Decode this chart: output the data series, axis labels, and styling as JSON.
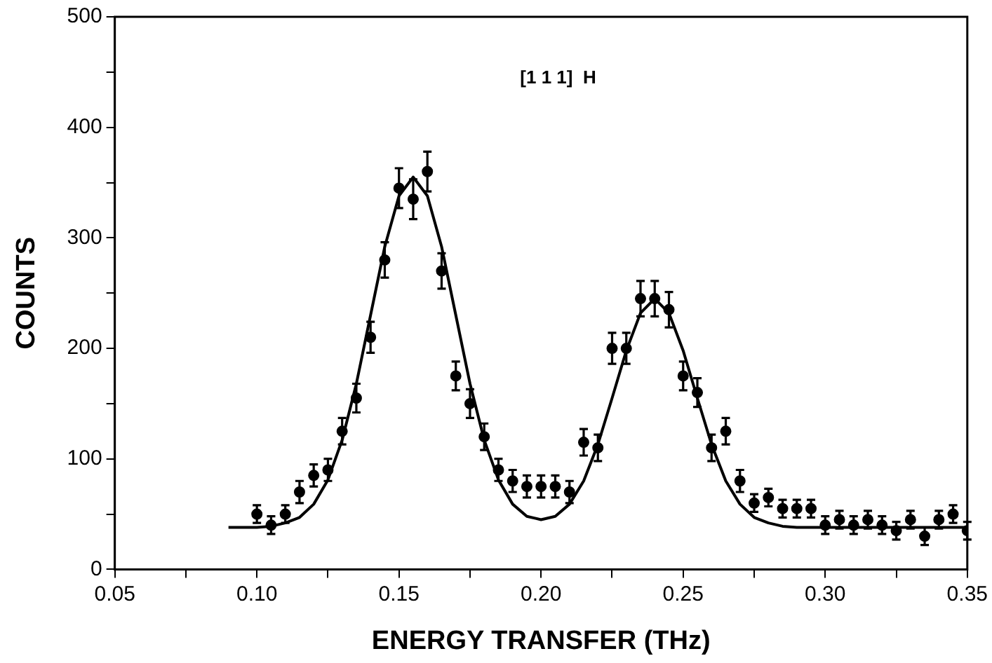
{
  "chart_data": {
    "type": "scatter",
    "xlabel": "ENERGY TRANSFER (THz)",
    "ylabel": "COUNTS",
    "annotations": [
      "[1 1 1]  H"
    ],
    "xlim": [
      0.05,
      0.35
    ],
    "ylim": [
      0,
      500
    ],
    "xticks": [
      0.05,
      {
        "value": 0.075,
        "label": null
      },
      "0.10",
      {
        "value": 0.125,
        "label": null
      },
      0.15,
      {
        "value": 0.175,
        "label": null
      },
      "0.20",
      {
        "value": 0.225,
        "label": null
      },
      0.25,
      {
        "value": 0.275,
        "label": null
      },
      "0.30",
      {
        "value": 0.325,
        "label": null
      },
      0.35
    ],
    "yticks": [
      0,
      {
        "value": 50,
        "label": null
      },
      100,
      {
        "value": 150,
        "label": null
      },
      200,
      {
        "value": 250,
        "label": null
      },
      300,
      {
        "value": 350,
        "label": null
      },
      400,
      {
        "value": 450,
        "label": null
      },
      500
    ],
    "grid": false,
    "legend": false,
    "marker": "circle",
    "series": [
      {
        "type": "scatter",
        "color": "#000000",
        "x": [
          0.1,
          0.105,
          0.11,
          0.115,
          0.12,
          0.125,
          0.13,
          0.135,
          0.14,
          0.145,
          0.15,
          0.155,
          0.16,
          0.165,
          0.17,
          0.175,
          0.18,
          0.185,
          0.19,
          0.195,
          0.2,
          0.205,
          0.21,
          0.215,
          0.22,
          0.225,
          0.23,
          0.235,
          0.24,
          0.245,
          0.25,
          0.255,
          0.26,
          0.265,
          0.27,
          0.275,
          0.28,
          0.285,
          0.29,
          0.295,
          0.3,
          0.305,
          0.31,
          0.315,
          0.32,
          0.325,
          0.33,
          0.335,
          0.34,
          0.345,
          0.35
        ],
        "values": [
          50,
          40,
          50,
          70,
          85,
          90,
          125,
          155,
          210,
          280,
          345,
          335,
          360,
          270,
          175,
          150,
          120,
          90,
          80,
          75,
          75,
          75,
          70,
          115,
          110,
          200,
          200,
          245,
          245,
          235,
          175,
          160,
          110,
          125,
          80,
          60,
          65,
          55,
          55,
          55,
          40,
          45,
          40,
          45,
          40,
          35,
          45,
          30,
          45,
          50,
          35
        ],
        "errors": [
          8,
          8,
          8,
          10,
          10,
          10,
          12,
          13,
          14,
          16,
          18,
          18,
          18,
          16,
          13,
          13,
          12,
          10,
          10,
          10,
          10,
          10,
          10,
          12,
          12,
          14,
          14,
          16,
          16,
          16,
          13,
          13,
          12,
          12,
          10,
          8,
          8,
          8,
          8,
          8,
          8,
          8,
          8,
          8,
          8,
          8,
          8,
          8,
          8,
          8,
          8
        ]
      },
      {
        "type": "line",
        "color": "#000000",
        "marker": "none",
        "x": [
          0.09,
          0.095,
          0.1,
          0.105,
          0.11,
          0.115,
          0.12,
          0.125,
          0.13,
          0.135,
          0.14,
          0.145,
          0.15,
          0.155,
          0.16,
          0.165,
          0.17,
          0.175,
          0.18,
          0.185,
          0.19,
          0.195,
          0.2,
          0.205,
          0.21,
          0.215,
          0.22,
          0.225,
          0.23,
          0.235,
          0.24,
          0.245,
          0.25,
          0.255,
          0.26,
          0.265,
          0.27,
          0.275,
          0.28,
          0.285,
          0.29,
          0.3,
          0.31,
          0.32,
          0.33,
          0.34,
          0.35
        ],
        "values": [
          38,
          38,
          38,
          39,
          42,
          47,
          59,
          81,
          117,
          168,
          230,
          292,
          338,
          355,
          338,
          292,
          230,
          168,
          117,
          81,
          59,
          48,
          45,
          48,
          59,
          80,
          113,
          155,
          198,
          232,
          245,
          232,
          198,
          155,
          113,
          80,
          59,
          47,
          42,
          39,
          38,
          38,
          38,
          38,
          38,
          38,
          38
        ]
      }
    ]
  }
}
